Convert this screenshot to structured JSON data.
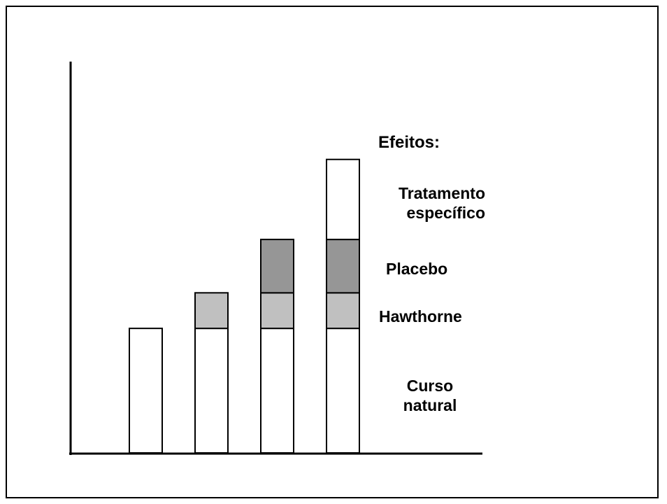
{
  "chart_data": {
    "type": "bar",
    "stacked": true,
    "categories": [
      "",
      "",
      "",
      ""
    ],
    "series": [
      {
        "name": "Curso natural",
        "color": "#ffffff",
        "values": [
          3.5,
          3.5,
          3.5,
          3.5
        ]
      },
      {
        "name": "Hawthorne",
        "color": "#c0c0c0",
        "values": [
          0,
          1,
          1,
          1
        ]
      },
      {
        "name": "Placebo",
        "color": "#969696",
        "values": [
          0,
          0,
          1.5,
          1.5
        ]
      },
      {
        "name": "Tratamento específico",
        "color": "#ffffff",
        "values": [
          0,
          0,
          0,
          2.25
        ]
      }
    ],
    "ylim": [
      0,
      11
    ],
    "grid": false,
    "legend": {
      "title": "Efeitos:",
      "placement": "right",
      "entries": [
        {
          "lines": [
            "Tratamento",
            "específico"
          ]
        },
        {
          "lines": [
            "Placebo"
          ]
        },
        {
          "lines": [
            "Hawthorne"
          ]
        },
        {
          "lines": [
            "Curso",
            "natural"
          ]
        }
      ]
    }
  }
}
